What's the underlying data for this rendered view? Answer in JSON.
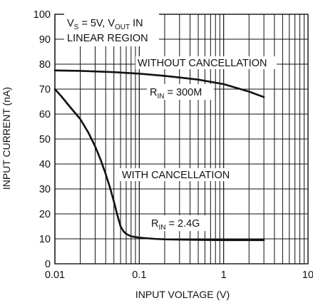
{
  "chart_data": {
    "type": "line",
    "title": "",
    "xlabel": "INPUT VOLTAGE (V)",
    "ylabel": "INPUT CURRENT (nA)",
    "xscale": "log",
    "xlim": [
      0.01,
      10
    ],
    "ylim": [
      0,
      100
    ],
    "grid": true,
    "x_tick_labels": [
      "0.01",
      "0.1",
      "1",
      "10"
    ],
    "y_tick_labels": [
      "0",
      "10",
      "20",
      "30",
      "40",
      "50",
      "60",
      "70",
      "80",
      "90",
      "100"
    ],
    "series": [
      {
        "name": "WITHOUT CANCELLATION",
        "x": [
          0.01,
          0.02,
          0.05,
          0.1,
          0.2,
          0.5,
          1,
          2,
          3
        ],
        "y": [
          77.5,
          77.3,
          76.8,
          76.2,
          75.3,
          73.8,
          72.0,
          69.0,
          66.8
        ]
      },
      {
        "name": "WITH CANCELLATION",
        "x": [
          0.01,
          0.012,
          0.015,
          0.02,
          0.025,
          0.03,
          0.035,
          0.04,
          0.045,
          0.05,
          0.055,
          0.06,
          0.065,
          0.07,
          0.08,
          0.1,
          0.15,
          0.2,
          0.3,
          0.5,
          1,
          2,
          3
        ],
        "y": [
          70,
          67,
          63,
          58,
          52.5,
          47,
          41.5,
          36,
          30.5,
          25,
          19.5,
          15,
          13,
          12,
          11,
          10.5,
          10,
          9.8,
          9.7,
          9.6,
          9.5,
          9.5,
          9.5
        ]
      }
    ],
    "annotations": {
      "cond_vs_main": "V",
      "cond_vs_sub": "S",
      "cond_mid": " = 5V, V",
      "cond_vout_sub": "OUT",
      "cond_end": " IN",
      "cond_line2": "LINEAR REGION",
      "without_label": "WITHOUT CANCELLATION",
      "rin1_main": "R",
      "rin1_sub": "IN",
      "rin1_value": " = 300M",
      "with_label": "WITH CANCELLATION",
      "rin2_main": "R",
      "rin2_sub": "IN",
      "rin2_value": " = 2.4G"
    }
  }
}
